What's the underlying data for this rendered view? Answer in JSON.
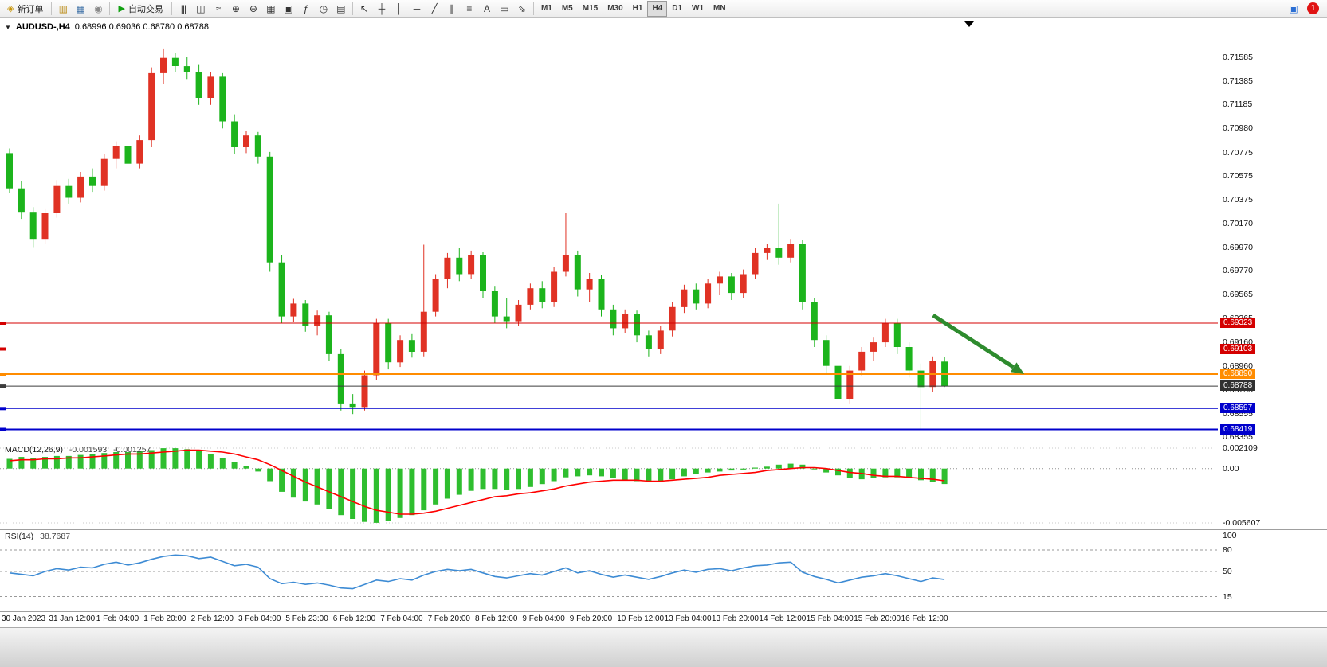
{
  "toolbar": {
    "new_order": {
      "label": "新订单",
      "glyph": "◈",
      "glyph_color": "#c8960c"
    },
    "quick_icons": [
      {
        "name": "market-watch-icon",
        "glyph": "▥",
        "color": "#b8860b"
      },
      {
        "name": "data-window-icon",
        "glyph": "▦",
        "color": "#3a6ea5"
      },
      {
        "name": "support-icon",
        "glyph": "◉",
        "color": "#8a8a8a"
      }
    ],
    "auto_trading": {
      "label": "自动交易",
      "glyph": "▶",
      "glyph_color": "#12a112"
    },
    "chart_tools": [
      {
        "name": "bar-chart-button",
        "glyph": "|||"
      },
      {
        "name": "candlestick-chart-button",
        "glyph": "◫"
      },
      {
        "name": "line-chart-button",
        "glyph": "≈"
      },
      {
        "name": "zoom-in-button",
        "glyph": "⊕"
      },
      {
        "name": "zoom-out-button",
        "glyph": "⊖"
      },
      {
        "name": "new-chart-button",
        "glyph": "▦"
      },
      {
        "name": "tile-windows-button",
        "glyph": "▣"
      },
      {
        "name": "indicators-button",
        "glyph": "ƒ"
      },
      {
        "name": "periods-button",
        "glyph": "◷"
      },
      {
        "name": "templates-button",
        "glyph": "▤"
      }
    ],
    "draw_tools": [
      {
        "name": "cursor-button",
        "glyph": "↖"
      },
      {
        "name": "crosshair-button",
        "glyph": "┼"
      },
      {
        "name": "vertical-line-button",
        "glyph": "│"
      },
      {
        "name": "horizontal-line-button",
        "glyph": "─"
      },
      {
        "name": "trendline-button",
        "glyph": "╱"
      },
      {
        "name": "channel-button",
        "glyph": "∥"
      },
      {
        "name": "fibonacci-button",
        "glyph": "≡"
      },
      {
        "name": "text-button",
        "glyph": "A"
      },
      {
        "name": "label-button",
        "glyph": "▭"
      },
      {
        "name": "arrows-button",
        "glyph": "⇘"
      }
    ],
    "timeframes": [
      "M1",
      "M5",
      "M15",
      "M30",
      "H1",
      "H4",
      "D1",
      "W1",
      "MN"
    ],
    "active_timeframe": "H4",
    "right_icons": [
      {
        "name": "community-icon",
        "glyph": "▣",
        "color": "#2b6fd4"
      }
    ],
    "notification_count": "1"
  },
  "chart_header": {
    "collapse_glyph": "▼",
    "symbol_period": "AUDUSD-,H4",
    "ohlc_text": "0.68996 0.69036 0.68780 0.68788"
  },
  "macd": {
    "label": "MACD(12,26,9)",
    "value_macd": "-0.001593",
    "value_signal": "-0.001257",
    "scale_labels": [
      "0.002109",
      "0.00",
      "-0.005607"
    ]
  },
  "rsi": {
    "label": "RSI(14)",
    "value": "38.7687",
    "scale_labels": [
      "100",
      "80",
      "50",
      "15"
    ]
  },
  "chart_data": [
    {
      "type": "candlestick",
      "title": "AUDUSD-,H4",
      "current_ohlc": {
        "open": 0.68996,
        "high": 0.69036,
        "low": 0.6878,
        "close": 0.68788
      },
      "ylim": [
        0.68355,
        0.71585
      ],
      "y_ticks": [
        "0.71585",
        "0.71385",
        "0.71185",
        "0.70980",
        "0.70775",
        "0.70575",
        "0.70375",
        "0.70170",
        "0.69970",
        "0.69770",
        "0.69565",
        "0.69365",
        "0.69160",
        "0.68960",
        "0.68755",
        "0.68555",
        "0.68355"
      ],
      "x_labels": [
        "30 Jan 2023",
        "31 Jan 12:00",
        "1 Feb 04:00",
        "1 Feb 20:00",
        "2 Feb 12:00",
        "3 Feb 04:00",
        "5 Feb 23:00",
        "6 Feb 12:00",
        "7 Feb 04:00",
        "7 Feb 20:00",
        "8 Feb 12:00",
        "9 Feb 04:00",
        "9 Feb 20:00",
        "10 Feb 12:00",
        "13 Feb 04:00",
        "13 Feb 20:00",
        "14 Feb 12:00",
        "15 Feb 04:00",
        "15 Feb 20:00",
        "16 Feb 12:00"
      ],
      "colors": {
        "bull": "#e03224",
        "bear": "#1cb41c",
        "background": "#ffffff"
      },
      "candles": [
        [
          0.7077,
          0.7081,
          0.7043,
          0.7047
        ],
        [
          0.7047,
          0.7053,
          0.7021,
          0.7027
        ],
        [
          0.7027,
          0.7031,
          0.6997,
          0.7004
        ],
        [
          0.7004,
          0.703,
          0.7,
          0.7026
        ],
        [
          0.7026,
          0.7054,
          0.7022,
          0.7049
        ],
        [
          0.7049,
          0.7055,
          0.7034,
          0.7039
        ],
        [
          0.7039,
          0.7061,
          0.7035,
          0.7057
        ],
        [
          0.7057,
          0.7064,
          0.7044,
          0.7049
        ],
        [
          0.7049,
          0.7076,
          0.7045,
          0.7072
        ],
        [
          0.7072,
          0.7087,
          0.7064,
          0.7083
        ],
        [
          0.7083,
          0.7088,
          0.7063,
          0.7068
        ],
        [
          0.7068,
          0.7092,
          0.7064,
          0.7088
        ],
        [
          0.7088,
          0.715,
          0.7082,
          0.7145
        ],
        [
          0.7145,
          0.7166,
          0.7136,
          0.7158
        ],
        [
          0.7158,
          0.7162,
          0.7146,
          0.7151
        ],
        [
          0.7151,
          0.7159,
          0.714,
          0.7146
        ],
        [
          0.7146,
          0.7152,
          0.7118,
          0.7124
        ],
        [
          0.7124,
          0.7146,
          0.7118,
          0.7142
        ],
        [
          0.7142,
          0.7145,
          0.7098,
          0.7104
        ],
        [
          0.7104,
          0.711,
          0.7076,
          0.7082
        ],
        [
          0.7082,
          0.7096,
          0.7077,
          0.7092
        ],
        [
          0.7092,
          0.7095,
          0.7068,
          0.7074
        ],
        [
          0.7074,
          0.7078,
          0.6976,
          0.6984
        ],
        [
          0.6984,
          0.699,
          0.6932,
          0.6938
        ],
        [
          0.6938,
          0.6953,
          0.6933,
          0.6949
        ],
        [
          0.6949,
          0.6952,
          0.6925,
          0.693
        ],
        [
          0.693,
          0.6943,
          0.6922,
          0.6939
        ],
        [
          0.6939,
          0.6942,
          0.69,
          0.6906
        ],
        [
          0.6906,
          0.691,
          0.6858,
          0.6864
        ],
        [
          0.6864,
          0.6872,
          0.6855,
          0.6861
        ],
        [
          0.6861,
          0.6892,
          0.6858,
          0.6888
        ],
        [
          0.6888,
          0.6936,
          0.6884,
          0.6932
        ],
        [
          0.6932,
          0.6936,
          0.6893,
          0.6899
        ],
        [
          0.6899,
          0.6922,
          0.6895,
          0.6918
        ],
        [
          0.6918,
          0.6923,
          0.6903,
          0.6908
        ],
        [
          0.6908,
          0.6999,
          0.6904,
          0.6942
        ],
        [
          0.6942,
          0.6974,
          0.6938,
          0.697
        ],
        [
          0.697,
          0.6992,
          0.6962,
          0.6988
        ],
        [
          0.6988,
          0.6996,
          0.6968,
          0.6974
        ],
        [
          0.6974,
          0.6994,
          0.697,
          0.699
        ],
        [
          0.699,
          0.6993,
          0.6954,
          0.696
        ],
        [
          0.696,
          0.6964,
          0.6932,
          0.6938
        ],
        [
          0.6938,
          0.6954,
          0.6928,
          0.6934
        ],
        [
          0.6934,
          0.6952,
          0.693,
          0.6948
        ],
        [
          0.6948,
          0.6966,
          0.6944,
          0.6962
        ],
        [
          0.6962,
          0.6968,
          0.6945,
          0.695
        ],
        [
          0.695,
          0.698,
          0.6946,
          0.6976
        ],
        [
          0.6976,
          0.7026,
          0.6972,
          0.699
        ],
        [
          0.699,
          0.6994,
          0.6955,
          0.6961
        ],
        [
          0.6961,
          0.6975,
          0.695,
          0.697
        ],
        [
          0.697,
          0.6973,
          0.6938,
          0.6944
        ],
        [
          0.6944,
          0.6948,
          0.6922,
          0.6928
        ],
        [
          0.6928,
          0.6944,
          0.6924,
          0.694
        ],
        [
          0.694,
          0.6943,
          0.6916,
          0.6922
        ],
        [
          0.6922,
          0.6926,
          0.6904,
          0.691
        ],
        [
          0.691,
          0.693,
          0.6906,
          0.6926
        ],
        [
          0.6926,
          0.695,
          0.6921,
          0.6946
        ],
        [
          0.6946,
          0.6965,
          0.6941,
          0.6961
        ],
        [
          0.6961,
          0.6966,
          0.6944,
          0.6949
        ],
        [
          0.6949,
          0.697,
          0.6945,
          0.6966
        ],
        [
          0.6966,
          0.6976,
          0.6956,
          0.6972
        ],
        [
          0.6972,
          0.6975,
          0.6952,
          0.6958
        ],
        [
          0.6958,
          0.6978,
          0.6954,
          0.6974
        ],
        [
          0.6974,
          0.6996,
          0.697,
          0.6992
        ],
        [
          0.6992,
          0.7,
          0.6986,
          0.6996
        ],
        [
          0.6996,
          0.7034,
          0.6982,
          0.6988
        ],
        [
          0.6988,
          0.7004,
          0.6984,
          0.7
        ],
        [
          0.7,
          0.7003,
          0.6944,
          0.695
        ],
        [
          0.695,
          0.6954,
          0.6912,
          0.6918
        ],
        [
          0.6918,
          0.6922,
          0.689,
          0.6896
        ],
        [
          0.6896,
          0.69,
          0.6862,
          0.6868
        ],
        [
          0.6868,
          0.6896,
          0.6864,
          0.6892
        ],
        [
          0.6892,
          0.6912,
          0.6888,
          0.6908
        ],
        [
          0.6908,
          0.692,
          0.69,
          0.6916
        ],
        [
          0.6916,
          0.6936,
          0.6912,
          0.6932
        ],
        [
          0.6932,
          0.6936,
          0.6906,
          0.6912
        ],
        [
          0.6912,
          0.6916,
          0.6886,
          0.6892
        ],
        [
          0.6892,
          0.6898,
          0.6842,
          0.6878
        ],
        [
          0.6878,
          0.6904,
          0.6874,
          0.69
        ],
        [
          0.68996,
          0.69036,
          0.6878,
          0.68788
        ]
      ],
      "hlines": [
        {
          "price": 0.69323,
          "color": "#d40000",
          "width": 1,
          "label": "0.69323"
        },
        {
          "price": 0.69103,
          "color": "#d40000",
          "width": 1,
          "label": "0.69103"
        },
        {
          "price": 0.6889,
          "color": "#ff8c00",
          "width": 2,
          "label": "0.68890"
        },
        {
          "price": 0.68788,
          "color": "#3c3c3c",
          "width": 1,
          "label": "0.68788",
          "role": "current-price"
        },
        {
          "price": 0.68597,
          "color": "#0000cc",
          "width": 1,
          "label": "0.68597"
        },
        {
          "price": 0.68419,
          "color": "#0000cc",
          "width": 2,
          "label": "0.68419"
        }
      ],
      "trend_arrow": {
        "from_index": 78.3,
        "from_price": 0.6939,
        "to_index": 86.0,
        "to_price": 0.6889,
        "color": "#2e8b2e"
      }
    },
    {
      "type": "bar",
      "title": "MACD(12,26,9)",
      "ylim": [
        -0.005607,
        0.002109
      ],
      "bar_color": "#2fbe2f",
      "signal_color": "#ff0000",
      "histogram": [
        0.001,
        0.0012,
        0.0011,
        0.0012,
        0.0013,
        0.0013,
        0.0014,
        0.0015,
        0.0016,
        0.0017,
        0.0017,
        0.0018,
        0.0019,
        0.0021,
        0.0021,
        0.002,
        0.0018,
        0.0015,
        0.0011,
        0.0007,
        0.0003,
        -0.0003,
        -0.0013,
        -0.0024,
        -0.003,
        -0.0034,
        -0.0037,
        -0.0042,
        -0.0048,
        -0.0052,
        -0.0055,
        -0.0056,
        -0.0054,
        -0.0051,
        -0.0048,
        -0.0043,
        -0.0037,
        -0.0031,
        -0.0027,
        -0.0023,
        -0.0021,
        -0.0021,
        -0.0022,
        -0.0021,
        -0.0019,
        -0.0016,
        -0.0013,
        -0.0009,
        -0.0008,
        -0.0007,
        -0.0008,
        -0.001,
        -0.0012,
        -0.0013,
        -0.0014,
        -0.0013,
        -0.0011,
        -0.0008,
        -0.0006,
        -0.0004,
        -0.0003,
        -0.0002,
        -0.0001,
        0.0001,
        0.0002,
        0.0004,
        0.0005,
        0.0004,
        0.0,
        -0.0004,
        -0.0007,
        -0.001,
        -0.0011,
        -0.001,
        -0.0009,
        -0.0009,
        -0.001,
        -0.0012,
        -0.0014,
        -0.001593
      ],
      "signal": [
        0.0008,
        0.0009,
        0.0009,
        0.001,
        0.001,
        0.0011,
        0.0011,
        0.0012,
        0.0013,
        0.0014,
        0.0015,
        0.0015,
        0.0016,
        0.0017,
        0.0018,
        0.0019,
        0.0019,
        0.0018,
        0.0017,
        0.0015,
        0.0012,
        0.0009,
        0.0004,
        -0.0002,
        -0.0008,
        -0.0014,
        -0.0019,
        -0.0024,
        -0.0029,
        -0.0034,
        -0.0039,
        -0.0043,
        -0.0045,
        -0.0047,
        -0.0047,
        -0.0046,
        -0.0044,
        -0.0041,
        -0.0038,
        -0.0035,
        -0.0032,
        -0.0029,
        -0.0028,
        -0.0026,
        -0.0025,
        -0.0023,
        -0.0021,
        -0.0018,
        -0.0016,
        -0.0014,
        -0.0013,
        -0.0012,
        -0.0012,
        -0.0012,
        -0.0013,
        -0.0013,
        -0.0012,
        -0.0011,
        -0.001,
        -0.0009,
        -0.0007,
        -0.0006,
        -0.0005,
        -0.0004,
        -0.0002,
        -0.0001,
        0.0,
        0.0001,
        0.0001,
        0.0,
        -0.0002,
        -0.0004,
        -0.0005,
        -0.0007,
        -0.0008,
        -0.0008,
        -0.0009,
        -0.001,
        -0.0011,
        -0.001257
      ]
    },
    {
      "type": "line",
      "title": "RSI(14)",
      "ylim": [
        0,
        100
      ],
      "levels": [
        80,
        50,
        15
      ],
      "line_color": "#3d8bd4",
      "values": [
        48,
        46,
        44,
        50,
        54,
        52,
        56,
        55,
        60,
        63,
        59,
        62,
        67,
        71,
        73,
        72,
        68,
        70,
        64,
        58,
        60,
        56,
        40,
        33,
        35,
        32,
        34,
        31,
        27,
        26,
        32,
        38,
        36,
        40,
        38,
        45,
        50,
        53,
        51,
        53,
        48,
        43,
        41,
        44,
        47,
        45,
        50,
        55,
        48,
        51,
        46,
        42,
        45,
        42,
        39,
        43,
        48,
        52,
        49,
        53,
        54,
        51,
        55,
        58,
        59,
        62,
        63,
        49,
        43,
        39,
        34,
        38,
        42,
        44,
        47,
        44,
        40,
        36,
        41,
        38.7687
      ]
    }
  ]
}
